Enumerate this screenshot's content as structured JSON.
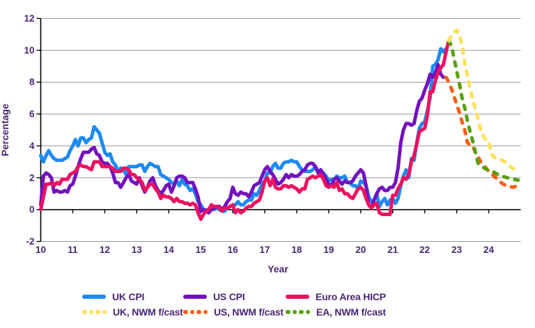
{
  "page": {
    "background": "#ffffff"
  },
  "axis": {
    "text_color": "#4B2473",
    "gridline_color": "#999999",
    "axis_color": "#000000"
  },
  "chart_data": {
    "type": "line",
    "title": "",
    "xlabel": "Year",
    "ylabel": "Percentage",
    "x_range": [
      2010,
      2025
    ],
    "y_range": [
      -2,
      12
    ],
    "x_tick_years": [
      2010,
      2011,
      2012,
      2013,
      2014,
      2015,
      2016,
      2017,
      2018,
      2019,
      2020,
      2021,
      2022,
      2023,
      2024
    ],
    "x_tick_labels": [
      "10",
      "11",
      "12",
      "13",
      "14",
      "15",
      "16",
      "17",
      "18",
      "19",
      "20",
      "21",
      "22",
      "23",
      "24"
    ],
    "y_ticks": [
      -2,
      0,
      2,
      4,
      6,
      8,
      10,
      12
    ],
    "grid": "horizontal",
    "legend_position": "bottom",
    "points_per_year": 12,
    "series": [
      {
        "name": "UK CPI",
        "color": "#1C8AF2",
        "style": "solid",
        "start": 2010.0,
        "values": [
          3.4,
          3.0,
          3.4,
          3.7,
          3.4,
          3.2,
          3.1,
          3.1,
          3.1,
          3.2,
          3.3,
          3.7,
          4.0,
          4.4,
          4.0,
          4.5,
          4.5,
          4.2,
          4.4,
          4.5,
          5.2,
          5.0,
          4.8,
          4.2,
          3.6,
          3.4,
          3.5,
          3.0,
          2.8,
          2.4,
          2.6,
          2.5,
          2.2,
          2.7,
          2.7,
          2.7,
          2.7,
          2.8,
          2.8,
          2.4,
          2.7,
          2.9,
          2.8,
          2.7,
          2.7,
          2.2,
          2.1,
          2.0,
          1.9,
          1.7,
          1.6,
          1.8,
          1.5,
          1.9,
          1.6,
          1.5,
          1.2,
          1.3,
          1.0,
          0.5,
          0.3,
          0.0,
          0.0,
          -0.1,
          0.1,
          0.0,
          0.1,
          0.0,
          -0.1,
          -0.1,
          0.1,
          0.2,
          0.3,
          0.3,
          0.5,
          0.3,
          0.3,
          0.5,
          0.6,
          0.6,
          1.0,
          0.9,
          1.2,
          1.6,
          1.8,
          2.3,
          2.3,
          2.7,
          2.9,
          2.6,
          2.6,
          2.9,
          3.0,
          3.0,
          3.1,
          3.0,
          3.0,
          2.7,
          2.5,
          2.4,
          2.4,
          2.4,
          2.5,
          2.7,
          2.4,
          2.4,
          2.3,
          2.1,
          1.8,
          1.9,
          1.9,
          2.1,
          2.0,
          2.0,
          2.1,
          1.7,
          1.7,
          1.5,
          1.5,
          1.3,
          1.8,
          1.7,
          1.5,
          0.8,
          0.5,
          0.6,
          1.0,
          0.2,
          0.5,
          0.7,
          0.3,
          0.6,
          0.7,
          0.4,
          0.7,
          1.5,
          2.1,
          2.5,
          2.0,
          3.2,
          3.1,
          4.2,
          5.1,
          5.4,
          5.5,
          6.2,
          7.0,
          9.0,
          9.1,
          9.4,
          10.1,
          9.9,
          10.1
        ]
      },
      {
        "name": "US CPI",
        "color": "#7311BE",
        "style": "solid",
        "start": 2010.0,
        "values": [
          0.3,
          2.1,
          2.3,
          2.2,
          2.0,
          1.1,
          1.2,
          1.1,
          1.1,
          1.2,
          1.1,
          1.5,
          1.6,
          2.1,
          2.7,
          3.2,
          3.6,
          3.6,
          3.6,
          3.8,
          3.9,
          3.5,
          3.4,
          3.0,
          2.9,
          2.9,
          2.7,
          2.3,
          1.7,
          1.7,
          1.4,
          1.7,
          2.0,
          2.2,
          1.8,
          1.7,
          1.6,
          2.0,
          1.5,
          1.1,
          1.4,
          1.8,
          2.0,
          1.5,
          1.2,
          1.0,
          1.2,
          1.5,
          1.6,
          1.1,
          1.5,
          2.0,
          2.1,
          2.1,
          2.0,
          1.7,
          1.7,
          1.7,
          1.3,
          0.8,
          -0.1,
          0.0,
          -0.1,
          -0.2,
          0.0,
          0.1,
          0.2,
          0.2,
          0.0,
          0.2,
          0.5,
          0.7,
          1.4,
          1.0,
          0.9,
          1.1,
          1.0,
          1.0,
          0.8,
          1.1,
          1.5,
          1.6,
          1.7,
          2.1,
          2.5,
          2.7,
          2.4,
          2.2,
          1.9,
          1.6,
          1.7,
          1.9,
          2.2,
          2.0,
          2.2,
          2.1,
          2.1,
          2.2,
          2.4,
          2.5,
          2.8,
          2.9,
          2.9,
          2.7,
          2.3,
          2.5,
          2.2,
          1.9,
          1.6,
          1.5,
          1.9,
          2.0,
          1.8,
          1.6,
          1.8,
          1.7,
          1.7,
          1.8,
          2.1,
          2.3,
          2.5,
          2.3,
          1.5,
          0.3,
          0.1,
          0.6,
          1.0,
          1.3,
          1.4,
          1.2,
          1.2,
          1.4,
          1.4,
          1.7,
          2.6,
          4.2,
          5.0,
          5.4,
          5.4,
          5.3,
          5.4,
          6.2,
          6.8,
          7.0,
          7.5,
          7.9,
          8.5,
          8.3,
          8.6,
          9.1,
          8.5,
          8.3
        ]
      },
      {
        "name": "Euro Area HICP",
        "color": "#EB1260",
        "style": "solid",
        "start": 2010.0,
        "values": [
          0.0,
          0.8,
          1.6,
          1.6,
          1.7,
          1.5,
          1.7,
          1.6,
          1.9,
          1.9,
          1.9,
          2.2,
          2.3,
          2.4,
          2.7,
          2.8,
          2.7,
          2.7,
          2.6,
          2.5,
          3.0,
          3.0,
          3.0,
          2.7,
          2.7,
          2.7,
          2.7,
          2.6,
          2.4,
          2.4,
          2.4,
          2.6,
          2.6,
          2.5,
          2.2,
          2.2,
          2.0,
          1.9,
          1.7,
          1.2,
          1.4,
          1.6,
          1.6,
          1.3,
          1.1,
          0.7,
          0.9,
          0.8,
          0.8,
          0.7,
          0.5,
          0.7,
          0.5,
          0.5,
          0.4,
          0.4,
          0.3,
          0.4,
          0.3,
          -0.2,
          -0.6,
          -0.3,
          -0.1,
          0.0,
          0.3,
          0.2,
          0.2,
          0.1,
          -0.1,
          0.1,
          0.1,
          0.2,
          0.3,
          -0.2,
          0.0,
          -0.2,
          -0.1,
          0.1,
          0.2,
          0.2,
          0.4,
          0.5,
          0.6,
          1.1,
          1.8,
          2.0,
          1.5,
          1.9,
          1.4,
          1.3,
          1.3,
          1.5,
          1.5,
          1.4,
          1.5,
          1.4,
          1.3,
          1.1,
          1.3,
          1.3,
          1.9,
          2.0,
          2.1,
          2.0,
          2.1,
          2.2,
          1.9,
          1.5,
          1.4,
          1.5,
          1.4,
          1.7,
          1.2,
          1.3,
          1.0,
          1.0,
          0.8,
          0.7,
          1.0,
          1.3,
          1.4,
          1.2,
          0.7,
          0.3,
          0.1,
          0.3,
          0.4,
          -0.2,
          -0.3,
          -0.3,
          -0.3,
          -0.3,
          0.9,
          0.9,
          1.3,
          1.6,
          2.0,
          1.9,
          2.2,
          3.0,
          3.4,
          4.1,
          4.9,
          5.0,
          5.1,
          5.9,
          7.4,
          7.4,
          8.1,
          8.6,
          8.9,
          9.1,
          9.9,
          10.6
        ]
      },
      {
        "name": "UK, NWM f/cast",
        "color": "#FCE15A",
        "style": "dashed",
        "start": 2022.75,
        "values": [
          10.6,
          10.9,
          11.15,
          11.25,
          11.0,
          10.3,
          9.2,
          8.4,
          7.6,
          6.9,
          6.3,
          5.7,
          5.0,
          4.6,
          4.4,
          4.3,
          3.5,
          3.3,
          3.2,
          3.2,
          3.1,
          3.0,
          2.85,
          2.7,
          2.6,
          2.45,
          2.35
        ]
      },
      {
        "name": "US, NWM f/cast",
        "color": "#FB5E12",
        "style": "dashed",
        "start": 2022.667,
        "values": [
          8.3,
          8.0,
          7.6,
          7.1,
          6.6,
          6.1,
          5.5,
          5.0,
          4.2,
          4.05,
          4.0,
          3.6,
          3.3,
          3.0,
          2.8,
          2.6,
          2.4,
          2.25,
          2.1,
          1.95,
          1.8,
          1.65,
          1.55,
          1.5,
          1.45,
          1.4,
          1.45,
          1.4
        ]
      },
      {
        "name": "EA, NWM f/cast",
        "color": "#57A00C",
        "style": "dashed",
        "start": 2022.75,
        "values": [
          10.6,
          10.3,
          9.5,
          8.7,
          7.9,
          7.0,
          6.4,
          5.6,
          4.9,
          4.3,
          3.6,
          2.9,
          2.75,
          2.65,
          2.55,
          2.45,
          2.4,
          2.35,
          2.25,
          2.15,
          2.1,
          2.05,
          2.0,
          1.95,
          1.92,
          1.88,
          1.85
        ]
      }
    ]
  },
  "legend": {
    "rows": [
      [
        "UK CPI",
        "US CPI",
        "Euro Area HICP"
      ],
      [
        "UK, NWM f/cast",
        "US, NWM f/cast",
        "EA, NWM f/cast"
      ]
    ]
  }
}
